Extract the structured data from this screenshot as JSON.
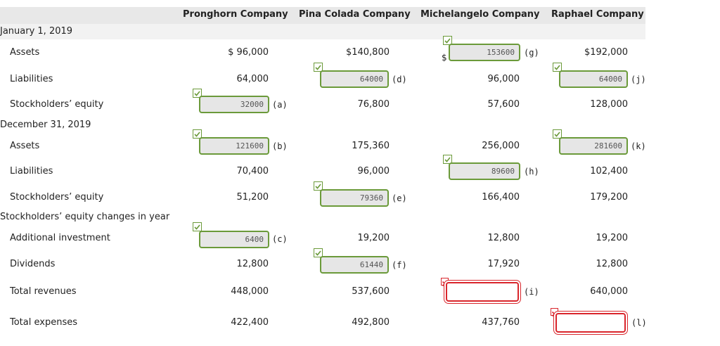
{
  "columns": [
    "Pronghorn Company",
    "Pina Colada Company",
    "Michelangelo Company",
    "Raphael Company"
  ],
  "sections": {
    "jan": "January 1, 2019",
    "dec": "December 31, 2019",
    "changes": "Stockholders’ equity changes in year"
  },
  "rows": {
    "assets1": "Assets",
    "liab1": "Liabilities",
    "se1": "Stockholders’ equity",
    "assets2": "Assets",
    "liab2": "Liabilities",
    "se2": "Stockholders’ equity",
    "addinv": "Additional investment",
    "div": "Dividends",
    "rev": "Total revenues",
    "exp": "Total expenses"
  },
  "values": {
    "a1_p": "$ 96,000",
    "a1_pc": "$140,800",
    "a1_r": "$192,000",
    "l1_p": "64,000",
    "l1_m": "96,000",
    "se1_pc": "76,800",
    "se1_m": "57,600",
    "se1_r": "128,000",
    "a2_pc": "175,360",
    "a2_m": "256,000",
    "l2_p": "70,400",
    "l2_pc": "96,000",
    "l2_r": "102,400",
    "se2_p": "51,200",
    "se2_m": "166,400",
    "se2_r": "179,200",
    "ai_pc": "19,200",
    "ai_m": "12,800",
    "ai_r": "19,200",
    "d_p": "12,800",
    "d_m": "17,920",
    "d_r": "12,800",
    "rev_p": "448,000",
    "rev_pc": "537,600",
    "rev_r": "640,000",
    "exp_p": "422,400",
    "exp_pc": "492,800",
    "exp_m": "437,760"
  },
  "inputs": {
    "a": {
      "value": "32000",
      "tag": "(a)"
    },
    "b": {
      "value": "121600",
      "tag": "(b)"
    },
    "c": {
      "value": "6400",
      "tag": "(c)"
    },
    "d": {
      "value": "64000",
      "tag": "(d)"
    },
    "e": {
      "value": "79360",
      "tag": "(e)"
    },
    "f": {
      "value": "61440",
      "tag": "(f)"
    },
    "g": {
      "value": "153600",
      "tag": "(g)",
      "prefix": "$"
    },
    "h": {
      "value": "89600",
      "tag": "(h)"
    },
    "i": {
      "value": "",
      "tag": "(i)"
    },
    "j": {
      "value": "64000",
      "tag": "(j)"
    },
    "k": {
      "value": "281600",
      "tag": "(k)"
    },
    "l": {
      "value": "",
      "tag": "(l)"
    }
  },
  "colors": {
    "correct": "#6b9a3a",
    "incorrect": "#d9262c",
    "header_bg": "#e8e8e8"
  }
}
